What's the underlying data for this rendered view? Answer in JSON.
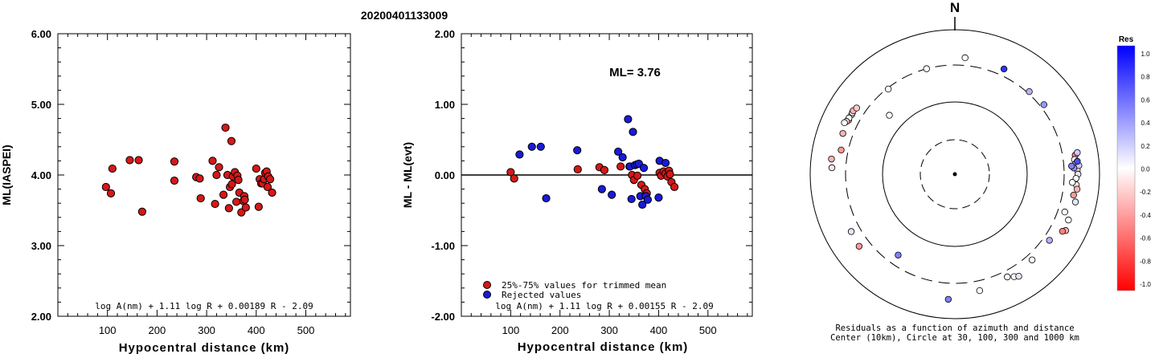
{
  "figure_title": "20200401133009",
  "colors": {
    "trimmed": "#d61818",
    "rejected": "#1a1ad8",
    "axis": "#000000"
  },
  "chart_data": [
    {
      "type": "scatter",
      "xlabel": "Hypocentral distance (km)",
      "ylabel": "ML(IASPEI)",
      "xlim": [
        0,
        590
      ],
      "ylim": [
        2.0,
        6.0
      ],
      "xticks": [
        "100",
        "200",
        "300",
        "400",
        "500"
      ],
      "xtick_values": [
        100,
        200,
        300,
        400,
        500
      ],
      "yticks": [
        "2.00",
        "3.00",
        "4.00",
        "5.00",
        "6.00"
      ],
      "ytick_values": [
        2,
        3,
        4,
        5,
        6
      ],
      "formula": "log A(nm) + 1.11 log R + 0.00189 R - 2.09",
      "series": [
        {
          "marker_color": "#d61818",
          "points": [
            [
              97,
              3.83
            ],
            [
              107,
              3.74
            ],
            [
              110,
              4.09
            ],
            [
              145,
              4.21
            ],
            [
              163,
              4.21
            ],
            [
              170,
              3.48
            ],
            [
              235,
              4.19
            ],
            [
              235,
              3.92
            ],
            [
              279,
              3.97
            ],
            [
              286,
              3.95
            ],
            [
              288,
              3.67
            ],
            [
              312,
              4.2
            ],
            [
              317,
              3.59
            ],
            [
              320,
              4.0
            ],
            [
              325,
              4.11
            ],
            [
              334,
              3.72
            ],
            [
              338,
              4.67
            ],
            [
              342,
              4.0
            ],
            [
              345,
              3.53
            ],
            [
              347,
              3.83
            ],
            [
              350,
              4.48
            ],
            [
              351,
              3.87
            ],
            [
              353,
              3.98
            ],
            [
              357,
              4.04
            ],
            [
              360,
              3.62
            ],
            [
              362,
              3.99
            ],
            [
              364,
              3.93
            ],
            [
              366,
              3.75
            ],
            [
              370,
              3.47
            ],
            [
              374,
              3.63
            ],
            [
              376,
              3.7
            ],
            [
              377,
              3.65
            ],
            [
              379,
              3.54
            ],
            [
              400,
              4.09
            ],
            [
              405,
              3.55
            ],
            [
              407,
              3.94
            ],
            [
              410,
              3.88
            ],
            [
              413,
              3.88
            ],
            [
              416,
              3.94
            ],
            [
              418,
              4.03
            ],
            [
              421,
              4.05
            ],
            [
              423,
              3.83
            ],
            [
              424,
              3.98
            ],
            [
              428,
              3.94
            ],
            [
              432,
              3.75
            ]
          ]
        }
      ]
    },
    {
      "type": "scatter",
      "xlabel": "Hypocentral distance (km)",
      "ylabel": "ML - ML(evt)",
      "xlim": [
        0,
        590
      ],
      "ylim": [
        -2.0,
        2.0
      ],
      "xticks": [
        "100",
        "200",
        "300",
        "400",
        "500"
      ],
      "xtick_values": [
        100,
        200,
        300,
        400,
        500
      ],
      "yticks": [
        "-2.00",
        "-1.00",
        "0.00",
        "1.00",
        "2.00"
      ],
      "ytick_values": [
        -2,
        -1,
        0,
        1,
        2
      ],
      "annotation": "ML= 3.76",
      "formula": "log A(nm) + 1.11 log R + 0.00155 R - 2.09",
      "legend_position": "bottom-left",
      "series": [
        {
          "name": "25%-75% values for trimmed mean",
          "marker_color": "#d61818",
          "points": [
            [
              100,
              0.04
            ],
            [
              107,
              -0.05
            ],
            [
              236,
              0.08
            ],
            [
              280,
              0.11
            ],
            [
              290,
              0.07
            ],
            [
              323,
              0.12
            ],
            [
              341,
              0.12
            ],
            [
              346,
              0.0
            ],
            [
              350,
              -0.07
            ],
            [
              357,
              -0.01
            ],
            [
              365,
              -0.14
            ],
            [
              372,
              -0.2
            ],
            [
              376,
              -0.26
            ],
            [
              402,
              0.03
            ],
            [
              405,
              -0.01
            ],
            [
              410,
              0.05
            ],
            [
              414,
              0.02
            ],
            [
              418,
              -0.02
            ],
            [
              421,
              0.06
            ],
            [
              423,
              0.01
            ],
            [
              426,
              -0.1
            ],
            [
              432,
              -0.17
            ]
          ]
        },
        {
          "name": "Rejected values",
          "marker_color": "#1a1ad8",
          "points": [
            [
              118,
              0.29
            ],
            [
              143,
              0.4
            ],
            [
              161,
              0.4
            ],
            [
              172,
              -0.33
            ],
            [
              235,
              0.35
            ],
            [
              285,
              -0.2
            ],
            [
              305,
              -0.28
            ],
            [
              318,
              0.33
            ],
            [
              327,
              0.25
            ],
            [
              338,
              0.79
            ],
            [
              342,
              0.12
            ],
            [
              345,
              -0.34
            ],
            [
              348,
              0.61
            ],
            [
              352,
              0.14
            ],
            [
              356,
              0.15
            ],
            [
              360,
              0.16
            ],
            [
              363,
              -0.3
            ],
            [
              367,
              -0.42
            ],
            [
              370,
              0.1
            ],
            [
              374,
              -0.3
            ],
            [
              378,
              -0.35
            ],
            [
              400,
              -0.32
            ],
            [
              402,
              0.2
            ],
            [
              414,
              0.17
            ]
          ]
        }
      ]
    },
    {
      "type": "scatter",
      "subtype": "polar-residuals",
      "north_label": "N",
      "caption_lines": [
        "Residuals as a function of azimuth and distance",
        "Center (10km), Circle at 30, 100, 300 and 1000 km"
      ],
      "colorbar_title": "Res",
      "colorbar_ticks": [
        "1.0",
        "0.8",
        "0.6",
        "0.4",
        "0.2",
        "0.0",
        "-0.2",
        "-0.4",
        "-0.6",
        "-0.8",
        "-1.0"
      ],
      "colorbar_values": [
        1.0,
        0.8,
        0.6,
        0.4,
        0.2,
        0.0,
        -0.2,
        -0.4,
        -0.6,
        -0.8,
        -1.0
      ],
      "rings_km": [
        30,
        100,
        300,
        1000
      ],
      "stations": [
        {
          "az": 345,
          "dist": 300,
          "res": 0.0
        },
        {
          "az": 25,
          "dist": 380,
          "res": 0.8
        },
        {
          "az": 5,
          "dist": 390,
          "res": 0.0
        },
        {
          "az": 42,
          "dist": 320,
          "res": 0.3
        },
        {
          "az": 52,
          "dist": 340,
          "res": 0.4
        },
        {
          "az": 312,
          "dist": 160,
          "res": 0.0
        },
        {
          "az": 322,
          "dist": 290,
          "res": 0.0
        },
        {
          "az": 297,
          "dist": 420,
          "res": -0.3
        },
        {
          "az": 300,
          "dist": 420,
          "res": -0.1
        },
        {
          "az": 298,
          "dist": 430,
          "res": 0.0
        },
        {
          "az": 301,
          "dist": 425,
          "res": 0.0
        },
        {
          "az": 296,
          "dist": 440,
          "res": -0.2
        },
        {
          "az": 302,
          "dist": 430,
          "res": -0.3
        },
        {
          "az": 304,
          "dist": 410,
          "res": -0.2
        },
        {
          "az": 295,
          "dist": 460,
          "res": 0.0
        },
        {
          "az": 290,
          "dist": 420,
          "res": -0.3
        },
        {
          "az": 282,
          "dist": 380,
          "res": -0.4
        },
        {
          "az": 277,
          "dist": 500,
          "res": -0.3
        },
        {
          "az": 273,
          "dist": 480,
          "res": -0.1
        },
        {
          "az": 81,
          "dist": 460,
          "res": -0.5
        },
        {
          "az": 83,
          "dist": 440,
          "res": 0.0
        },
        {
          "az": 85,
          "dist": 450,
          "res": 0.3
        },
        {
          "az": 88,
          "dist": 470,
          "res": -0.2
        },
        {
          "az": 90,
          "dist": 480,
          "res": 0.1
        },
        {
          "az": 92,
          "dist": 450,
          "res": 0.0
        },
        {
          "az": 95,
          "dist": 460,
          "res": -0.1
        },
        {
          "az": 97,
          "dist": 480,
          "res": -0.3
        },
        {
          "az": 100,
          "dist": 440,
          "res": -0.4
        },
        {
          "az": 86,
          "dist": 500,
          "res": 0.2
        },
        {
          "az": 84,
          "dist": 480,
          "res": 0.7
        },
        {
          "az": 87,
          "dist": 420,
          "res": 0.4
        },
        {
          "az": 94,
          "dist": 400,
          "res": 0.0
        },
        {
          "az": 103,
          "dist": 490,
          "res": 0.1
        },
        {
          "az": 112,
          "dist": 470,
          "res": 0.0
        },
        {
          "az": 117,
          "dist": 500,
          "res": -0.3
        },
        {
          "az": 118,
          "dist": 460,
          "res": -0.5
        },
        {
          "az": 109,
          "dist": 380,
          "res": 0.0
        },
        {
          "az": 125,
          "dist": 370,
          "res": 0.3
        },
        {
          "az": 138,
          "dist": 370,
          "res": 0.0
        },
        {
          "az": 153,
          "dist": 370,
          "res": 0.0
        },
        {
          "az": 150,
          "dist": 410,
          "res": 0.0
        },
        {
          "az": 148,
          "dist": 440,
          "res": 0.1
        },
        {
          "az": 168,
          "dist": 420,
          "res": 0.0
        },
        {
          "az": 183,
          "dist": 520,
          "res": 0.5
        },
        {
          "az": 215,
          "dist": 220,
          "res": 0.5
        },
        {
          "az": 233,
          "dist": 430,
          "res": -0.4
        },
        {
          "az": 241,
          "dist": 410,
          "res": 0.1
        },
        {
          "az": 86,
          "dist": 390,
          "res": 0.5
        },
        {
          "az": 80,
          "dist": 500,
          "res": 0.2
        }
      ]
    }
  ],
  "legend": {
    "trimmed_label": "25%-75% values for trimmed mean",
    "rejected_label": "Rejected values"
  }
}
